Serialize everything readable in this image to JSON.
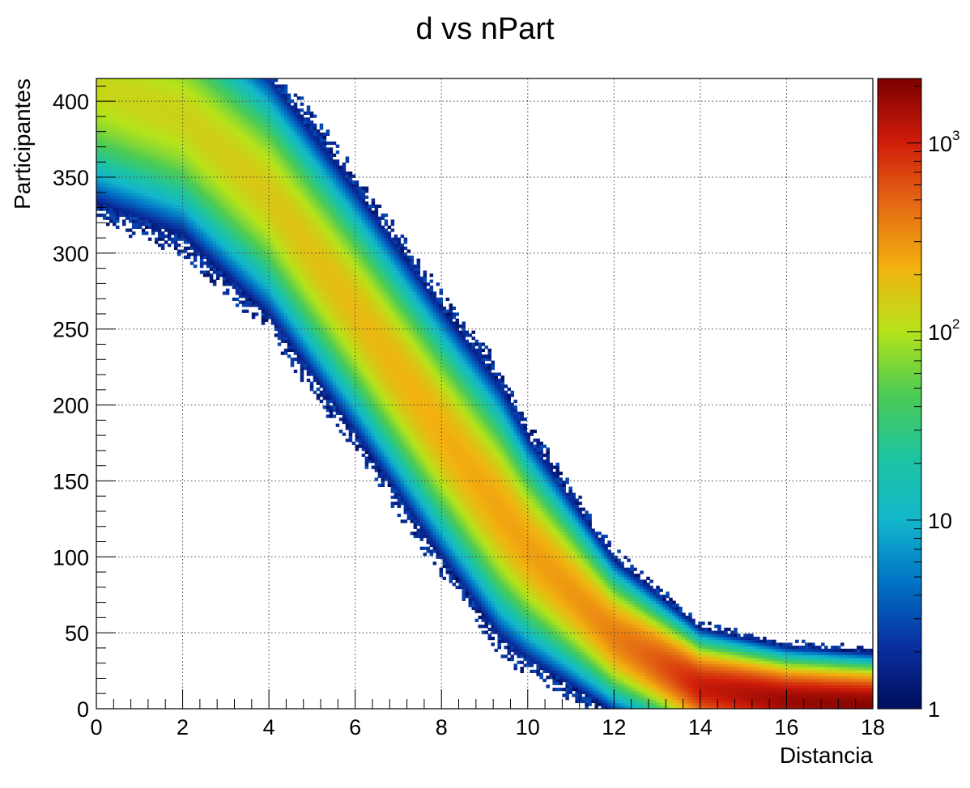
{
  "chart_data": {
    "type": "heatmap",
    "title": "d vs nPart",
    "xlabel": "Distancia",
    "ylabel": "Participantes",
    "xlim": [
      0,
      18
    ],
    "ylim": [
      0,
      415
    ],
    "grid": true,
    "x_ticks": [
      "0",
      "2",
      "4",
      "6",
      "8",
      "10",
      "12",
      "14",
      "16",
      "18"
    ],
    "y_ticks": [
      "0",
      "50",
      "100",
      "150",
      "200",
      "250",
      "300",
      "350",
      "400"
    ],
    "colorbar": {
      "scale": "log",
      "range": [
        1,
        2200
      ],
      "ticks": [
        {
          "value": 1,
          "base": "1",
          "exp": ""
        },
        {
          "value": 10,
          "base": "10",
          "exp": ""
        },
        {
          "value": 100,
          "base": "10",
          "exp": "2"
        },
        {
          "value": 1000,
          "base": "10",
          "exp": "3"
        }
      ],
      "palette": [
        "#000d5c",
        "#0a2fa0",
        "#0072c5",
        "#13b6cc",
        "#1ec49f",
        "#4ccb54",
        "#b6e31a",
        "#f2b210",
        "#e56a14",
        "#d01d0a",
        "#7c0000"
      ]
    },
    "ridge": {
      "x": [
        0,
        2,
        4,
        6,
        8,
        10,
        12,
        14,
        16,
        18
      ],
      "y": [
        410,
        390,
        338,
        262,
        182,
        106,
        48,
        14,
        5,
        2
      ]
    }
  }
}
